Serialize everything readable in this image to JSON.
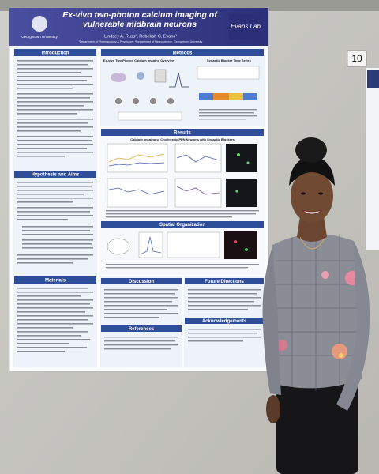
{
  "poster": {
    "title": "Ex-vivo two-photon calcium imaging of vulnerable midbrain neurons",
    "authors": "Lindsey A. Russ¹, Rebekah C. Evans²",
    "affiliation": "¹Department of Pharmacology & Physiology, ²Department of Neuroscience, Georgetown University",
    "institution": "Georgetown University",
    "lab_logo": "Evans Lab",
    "sections": {
      "introduction": "Introduction",
      "hypothesis": "Hypothesis and Aims",
      "materials": "Materials",
      "methods": "Methods",
      "results": "Results",
      "spatial": "Spatial Organization",
      "discussion": "Discussion",
      "future": "Future Directions",
      "acknowledgements": "Acknowledgements",
      "references": "References"
    },
    "panels": {
      "overview": "Ex-vivo Two-Photon Calcium Imaging Overview",
      "time_series": "Synaptic Blocker Time Series",
      "calcium": "Calcium Imaging of Cholinergic PPN Neurons with Synaptic Blockers"
    }
  },
  "board_number": "10"
}
